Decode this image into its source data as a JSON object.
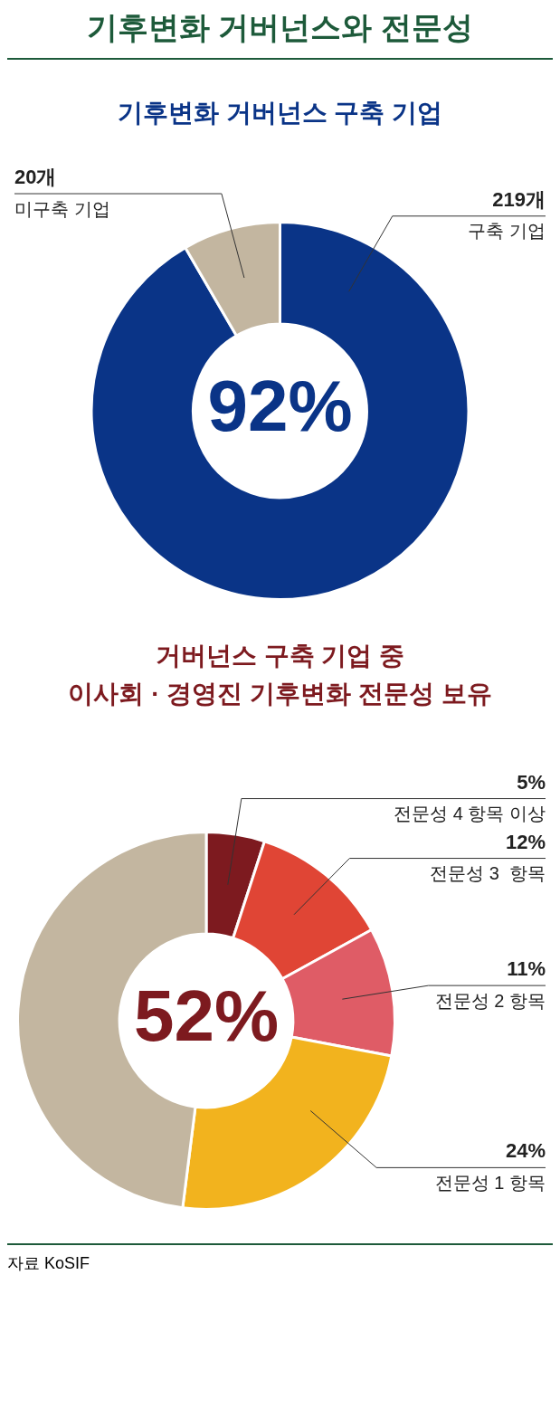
{
  "chart_data": [
    {
      "type": "donut",
      "title": "기후변화 거버넌스와 전문성",
      "subtitle": "기후변화 거버넌스 구축 기업",
      "categories": [
        "구축 기업",
        "미구축 기업"
      ],
      "values": [
        219,
        20
      ],
      "colors": [
        "#0a3487",
        "#c3b6a0"
      ],
      "value_labels": [
        "219개",
        "20개"
      ],
      "annotations": [
        "92%"
      ]
    },
    {
      "type": "donut",
      "title": "거버넌스 구축 기업 중\n이사회 · 경영진 기후변화 전문성 보유",
      "categories": [
        "전문성 4 항목 이상",
        "전문성 3  항목",
        "전문성 2 항목",
        "전문성 1 항목",
        null
      ],
      "values": [
        5,
        12,
        11,
        24,
        48
      ],
      "colors": [
        "#7d1a1f",
        "#e04535",
        "#df5c66",
        "#f2b31e",
        "#c3b6a0"
      ],
      "value_labels": [
        "5%",
        "12%",
        "11%",
        "24%",
        null
      ],
      "annotations": [
        "52%",
        "자료 KoSIF"
      ]
    }
  ]
}
